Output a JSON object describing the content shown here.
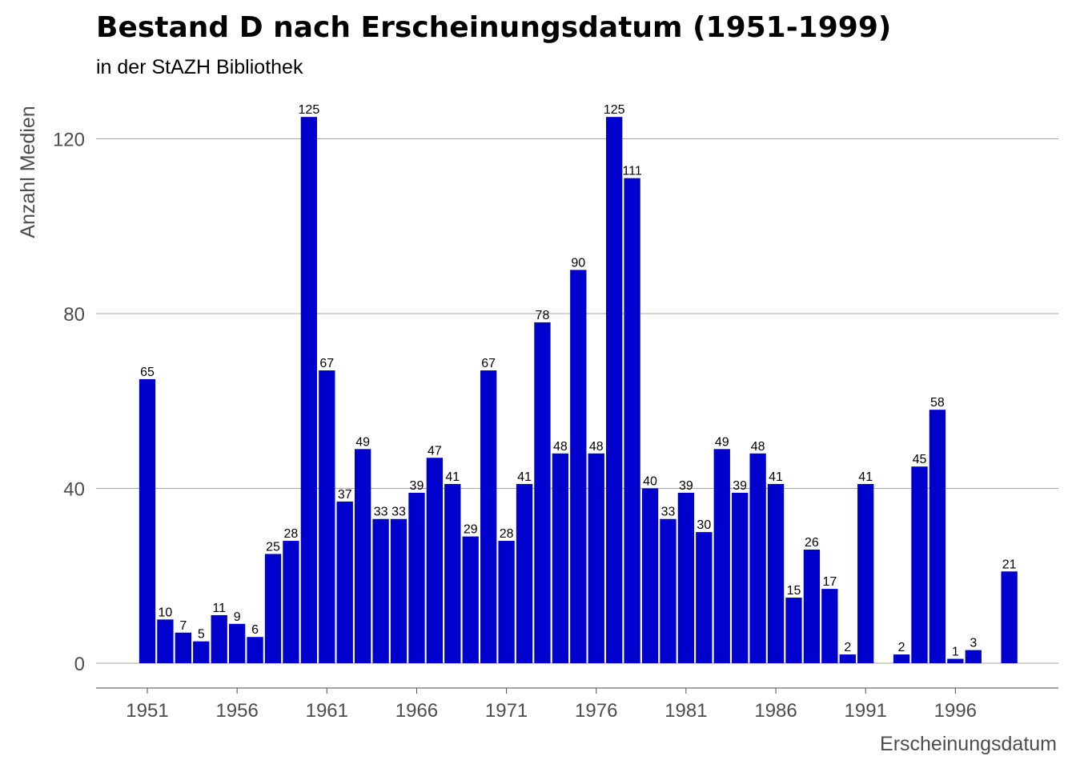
{
  "chart_data": {
    "type": "bar",
    "title": "Bestand D nach Erscheinungsdatum (1951-1999)",
    "subtitle": "in der StAZH Bibliothek",
    "xlabel": "Erscheinungsdatum",
    "ylabel": "Anzahl Medien",
    "ylim": [
      0,
      130
    ],
    "xlim": [
      1950.3,
      2000.5
    ],
    "yticks": [
      0,
      40,
      80,
      120
    ],
    "xticks": [
      1951,
      1956,
      1961,
      1966,
      1971,
      1976,
      1981,
      1986,
      1991,
      1996
    ],
    "grid": "horizontal",
    "bar_color": "#0000CC",
    "x": [
      1951,
      1952,
      1953,
      1954,
      1955,
      1956,
      1957,
      1958,
      1959,
      1960,
      1961,
      1962,
      1963,
      1964,
      1965,
      1966,
      1967,
      1968,
      1969,
      1970,
      1971,
      1972,
      1973,
      1974,
      1975,
      1976,
      1977,
      1978,
      1979,
      1980,
      1981,
      1982,
      1983,
      1984,
      1985,
      1986,
      1987,
      1988,
      1989,
      1990,
      1991,
      1993,
      1994,
      1995,
      1996,
      1997,
      1999
    ],
    "values": [
      65,
      10,
      7,
      5,
      11,
      9,
      6,
      25,
      28,
      125,
      67,
      37,
      49,
      33,
      33,
      39,
      47,
      41,
      29,
      67,
      28,
      41,
      78,
      48,
      90,
      48,
      125,
      111,
      40,
      33,
      39,
      30,
      49,
      39,
      48,
      41,
      15,
      26,
      17,
      2,
      41,
      2,
      45,
      58,
      1,
      3,
      21
    ]
  }
}
